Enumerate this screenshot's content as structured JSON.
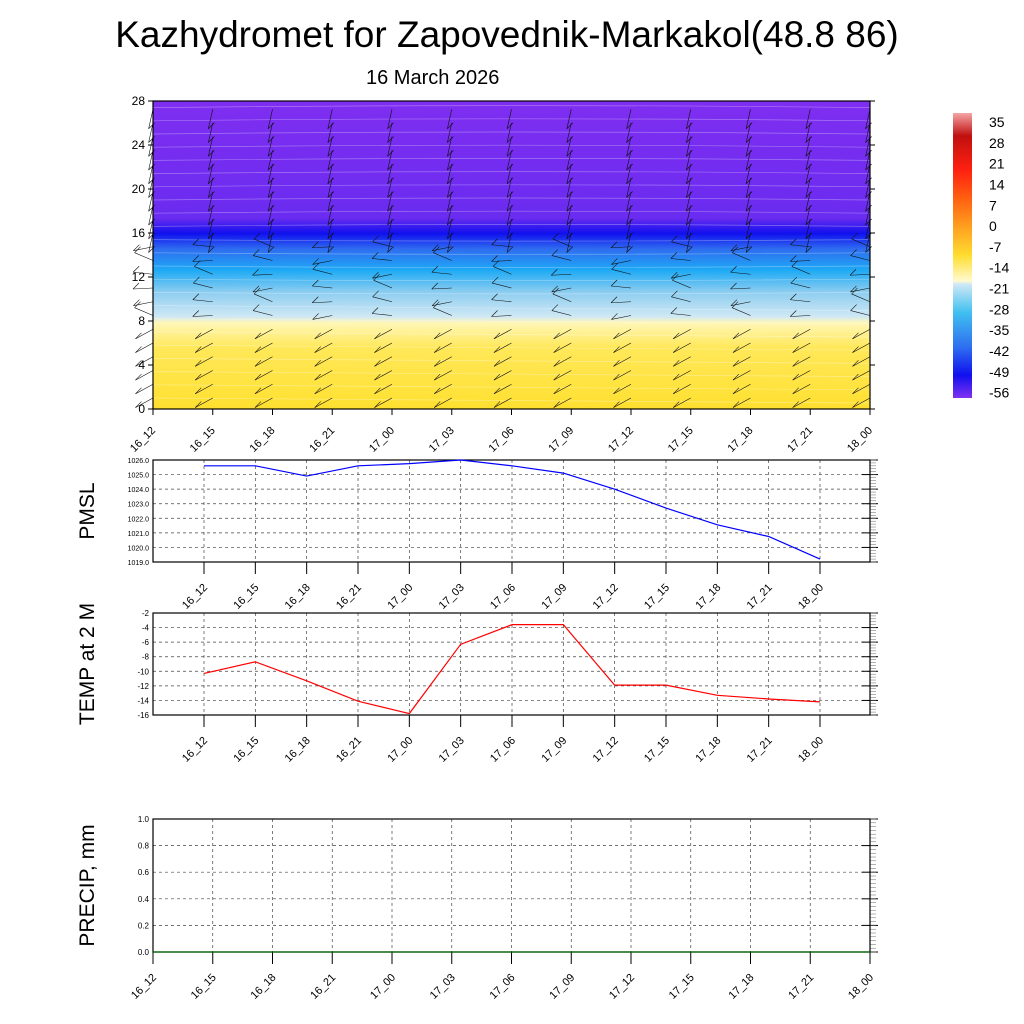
{
  "title": "Kazhydromet for Zapovednik-Markakol(48.8 86)",
  "subtitle": "16 March 2026",
  "chart_data": [
    {
      "type": "heatmap",
      "name": "vertical-cross-section",
      "x_labels": [
        "16_12",
        "16_15",
        "16_18",
        "16_21",
        "17_00",
        "17_03",
        "17_06",
        "17_09",
        "17_12",
        "17_15",
        "17_18",
        "17_21",
        "18_00"
      ],
      "ylim": [
        0,
        28
      ],
      "y_ticks": [
        0,
        4,
        8,
        12,
        16,
        20,
        24,
        28
      ],
      "colorbar": {
        "labels": [
          "35",
          "28",
          "21",
          "14",
          "7",
          "0",
          "-7",
          "-14",
          "-21",
          "-28",
          "-35",
          "-42",
          "-49",
          "-56"
        ],
        "range": [
          -60,
          38
        ]
      },
      "bands": [
        {
          "from": 0,
          "to": 8,
          "value": -5
        },
        {
          "from": 8,
          "to": 11,
          "value": -17
        },
        {
          "from": 11,
          "to": 14,
          "value": -30
        },
        {
          "from": 14,
          "to": 16.5,
          "value": -50
        },
        {
          "from": 16.5,
          "to": 28,
          "value": -58
        }
      ]
    },
    {
      "type": "line",
      "name": "pmsl",
      "ylabel": "PMSL",
      "ylim": [
        1019,
        1026
      ],
      "y_ticks": [
        "1019.0",
        "1020.0",
        "1021.0",
        "1022.0",
        "1023.0",
        "1024.0",
        "1025.0",
        "1026.0"
      ],
      "x": [
        "16_12",
        "16_15",
        "16_18",
        "16_21",
        "17_00",
        "17_03",
        "17_06",
        "17_09",
        "17_12",
        "17_15",
        "17_18",
        "17_21",
        "18_00"
      ],
      "values": [
        1025.6,
        1025.6,
        1024.9,
        1025.6,
        1025.75,
        1026.0,
        1025.6,
        1025.1,
        1024.0,
        1022.7,
        1021.55,
        1020.75,
        1019.2
      ],
      "color": "#0000ff"
    },
    {
      "type": "line",
      "name": "temp",
      "ylabel": "TEMP at 2 M",
      "ylim": [
        -16,
        -2
      ],
      "y_ticks": [
        "-16",
        "-14",
        "-12",
        "-10",
        "-8",
        "-6",
        "-4",
        "-2"
      ],
      "x": [
        "16_12",
        "16_15",
        "16_18",
        "16_21",
        "17_00",
        "17_03",
        "17_06",
        "17_09",
        "17_12",
        "17_15",
        "17_18",
        "17_21",
        "18_00"
      ],
      "values": [
        -10.3,
        -8.7,
        -11.3,
        -14.1,
        -15.8,
        -6.3,
        -3.6,
        -3.6,
        -11.9,
        -11.9,
        -13.3,
        -13.8,
        -14.2
      ],
      "color": "#ff0000"
    },
    {
      "type": "line",
      "name": "precip",
      "ylabel": "PRECIP, mm",
      "ylim": [
        0,
        1
      ],
      "y_ticks": [
        "0.0",
        "0.2",
        "0.4",
        "0.6",
        "0.8",
        "1.0"
      ],
      "x": [
        "16_12",
        "16_15",
        "16_18",
        "16_21",
        "17_00",
        "17_03",
        "17_06",
        "17_09",
        "17_12",
        "17_15",
        "17_18",
        "17_21",
        "18_00"
      ],
      "values": [
        0,
        0,
        0,
        0,
        0,
        0,
        0,
        0,
        0,
        0,
        0,
        0,
        0
      ],
      "color": "#006400"
    }
  ]
}
